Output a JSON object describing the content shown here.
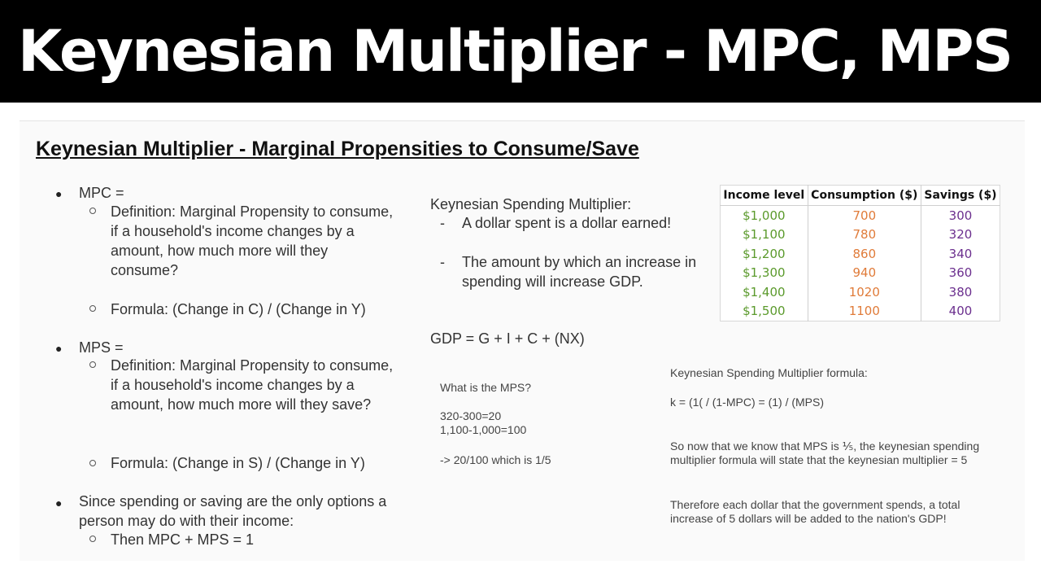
{
  "banner": {
    "title": "Keynesian Multiplier - MPC, MPS"
  },
  "slide": {
    "title": "Keynesian Multiplier - Marginal Propensities to Consume/Save",
    "left": {
      "mpc_label": "MPC =",
      "mpc_definition": "Definition: Marginal Propensity to consume, if a household's income changes by a amount, how much more will they consume?",
      "mpc_formula": "Formula: (Change in C) / (Change in Y)",
      "mps_label": "MPS =",
      "mps_definition": "Definition:  Marginal Propensity to consume, if a household's income changes by a amount, how much more will they save?",
      "mps_formula": "Formula: (Change in S) / (Change in Y)",
      "since_text": "Since spending or saving are the only options a person may do with their income:",
      "then_text": "Then MPC + MPS = 1"
    },
    "middle": {
      "multiplier_heading": "Keynesian Spending Multiplier:",
      "point1": "A dollar spent is a dollar earned!",
      "point2": "The amount by which an increase in spending will increase GDP.",
      "gdp_formula": "GDP = G + I + C + (NX)",
      "mps_question": "What is the MPS?",
      "calc1": "320-300=20",
      "calc2": "1,100-1,000=100",
      "result": "-> 20/100 which is 1/5"
    },
    "right": {
      "formula_heading": "Keynesian Spending Multiplier formula:",
      "formula": "k  = (1( / (1-MPC) = (1) / (MPS)",
      "conclusion": "So now that we know that MPS is ⅕, the keynesian spending multiplier formula will state that the keynesian multiplier = 5",
      "therefore": "Therefore each dollar that the government spends, a total increase of 5 dollars will be added to the nation's GDP!"
    },
    "table": {
      "headers": [
        "Income level",
        "Consumption ($)",
        "Savings ($)"
      ],
      "rows": [
        [
          "$1,000",
          "700",
          "300"
        ],
        [
          "$1,100",
          "780",
          "320"
        ],
        [
          "$1,200",
          "860",
          "340"
        ],
        [
          "$1,300",
          "940",
          "360"
        ],
        [
          "$1,400",
          "1020",
          "380"
        ],
        [
          "$1,500",
          "1100",
          "400"
        ]
      ],
      "colors": {
        "income": "#5b9a2c",
        "consumption": "#e07b39",
        "savings": "#6b2f8e"
      }
    }
  }
}
